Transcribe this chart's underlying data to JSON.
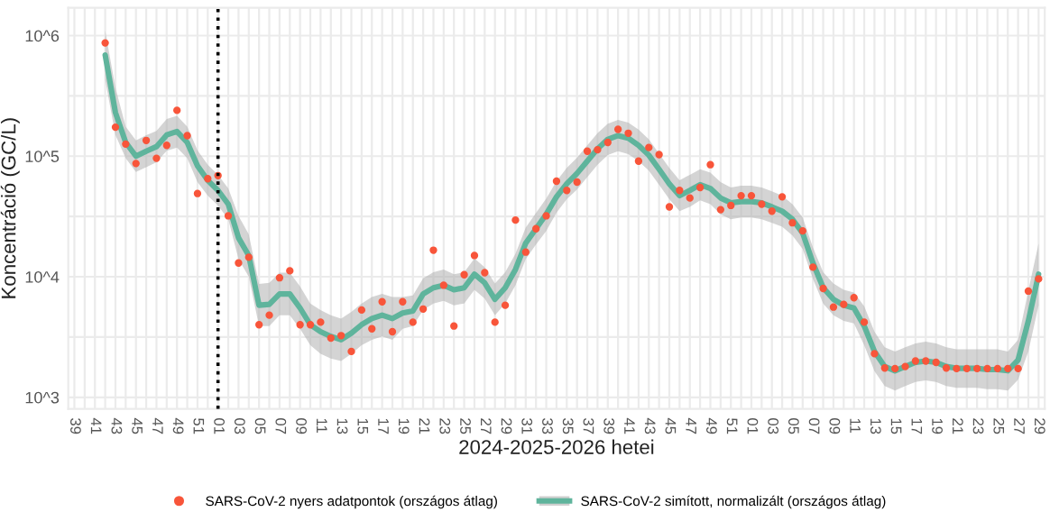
{
  "chart_data": {
    "type": "line",
    "xlabel": "2024-2025-2026 hetei",
    "ylabel": "Koncentráció (GC/L)",
    "log": "y",
    "grid": true,
    "legend": "bottom",
    "ylim": [
      800,
      1700000
    ],
    "yticks": [
      {
        "value": 1000,
        "label": "10^3"
      },
      {
        "value": 3162,
        "label": null
      },
      {
        "value": 10000,
        "label": "10^4"
      },
      {
        "value": 31623,
        "label": null
      },
      {
        "value": 100000,
        "label": "10^5"
      },
      {
        "value": 316228,
        "label": null
      },
      {
        "value": 1000000,
        "label": "10^6"
      }
    ],
    "categories": [
      "39",
      null,
      "41",
      null,
      "43",
      null,
      "45",
      null,
      "47",
      null,
      "49",
      null,
      "51",
      null,
      "01",
      null,
      "03",
      null,
      "05",
      null,
      "07",
      null,
      "09",
      null,
      "11",
      null,
      "13",
      null,
      "15",
      null,
      "17",
      null,
      "19",
      null,
      "21",
      null,
      "23",
      null,
      "25",
      null,
      "27",
      null,
      "29",
      null,
      "31",
      null,
      "33",
      null,
      "35",
      null,
      "37",
      null,
      "39",
      null,
      "41",
      null,
      "43",
      null,
      "45",
      null,
      "47",
      null,
      "49",
      null,
      "51",
      null,
      "01",
      null,
      "03",
      null,
      "05",
      null,
      "07",
      null,
      "09",
      null,
      "11",
      null,
      "13",
      null,
      "15",
      null,
      "17",
      null,
      "19",
      null,
      "21",
      null,
      "23",
      null,
      "25",
      null,
      "27",
      null,
      "29"
    ],
    "ref_lines": [
      {
        "axis": "x",
        "value": "01",
        "label": null,
        "color": "#000000",
        "line_style": "dotted"
      }
    ],
    "series": [
      {
        "name": "SARS-CoV-2 nyers adatpontok (országos átlag)",
        "type": "scatter",
        "marker": "circle",
        "color": "#f8553a",
        "values": [
          null,
          null,
          null,
          870000,
          174000,
          126000,
          87000,
          135000,
          96000,
          123000,
          240000,
          148000,
          49000,
          65000,
          69000,
          32000,
          13000,
          14500,
          4000,
          4800,
          9800,
          11200,
          4000,
          4000,
          4200,
          3100,
          3250,
          2400,
          5300,
          3700,
          6200,
          3500,
          6200,
          4200,
          5400,
          16600,
          8500,
          3900,
          10400,
          15000,
          10800,
          4200,
          5800,
          29500,
          16000,
          25000,
          32000,
          62000,
          52000,
          61000,
          110000,
          113000,
          130000,
          167000,
          155000,
          91000,
          118000,
          103000,
          38000,
          52000,
          45000,
          55000,
          85000,
          36000,
          39000,
          47000,
          47000,
          40000,
          35000,
          46000,
          28000,
          24000,
          12000,
          8000,
          5600,
          5900,
          6700,
          4200,
          2300,
          1750,
          1730,
          1800,
          2000,
          2000,
          1950,
          1750,
          1730,
          1730,
          1730,
          1730,
          1730,
          1730,
          1730,
          7600,
          9600
        ]
      },
      {
        "name": "SARS-CoV-2 simított, normalizált (országos átlag)",
        "color": "#5fb49c",
        "values": [
          null,
          null,
          null,
          690000,
          230000,
          130000,
          100000,
          110000,
          120000,
          150000,
          160000,
          130000,
          83000,
          63000,
          52000,
          40000,
          21000,
          15000,
          5800,
          5900,
          7200,
          7200,
          5500,
          4000,
          3500,
          3200,
          3000,
          3400,
          4000,
          4500,
          4800,
          4500,
          5000,
          5200,
          7200,
          8100,
          8500,
          7800,
          8100,
          10500,
          8900,
          6500,
          8100,
          11500,
          19000,
          25000,
          33000,
          46000,
          59000,
          72000,
          91000,
          115000,
          138000,
          148000,
          141000,
          123000,
          102000,
          78000,
          59000,
          47000,
          52000,
          58000,
          54000,
          45000,
          41000,
          42000,
          42000,
          41000,
          38000,
          35000,
          30000,
          23000,
          13000,
          8100,
          6500,
          5800,
          5500,
          3900,
          2400,
          1800,
          1660,
          1800,
          1950,
          2000,
          1950,
          1800,
          1740,
          1740,
          1740,
          1700,
          1700,
          1660,
          2040,
          4300,
          10500
        ],
        "lower": [
          null,
          null,
          null,
          430000,
          150000,
          96000,
          74000,
          81000,
          89000,
          111000,
          118000,
          96000,
          61000,
          47000,
          39000,
          30000,
          14000,
          10000,
          3900,
          3900,
          4800,
          4800,
          3700,
          2700,
          2300,
          2100,
          2000,
          2300,
          2700,
          3000,
          3200,
          3000,
          3700,
          3900,
          5300,
          6000,
          6300,
          5800,
          6000,
          7800,
          6600,
          4800,
          6000,
          8500,
          14000,
          18500,
          24000,
          34000,
          44000,
          53000,
          67000,
          85000,
          102000,
          110000,
          104000,
          91000,
          76000,
          58000,
          44000,
          35000,
          38000,
          43000,
          40000,
          33000,
          30000,
          31000,
          31000,
          30000,
          28000,
          26000,
          22000,
          17000,
          9600,
          6000,
          4800,
          4300,
          4100,
          2700,
          1650,
          1240,
          1140,
          1240,
          1340,
          1380,
          1340,
          1240,
          1200,
          1200,
          1200,
          1170,
          1170,
          1140,
          1400,
          2400,
          5800
        ],
        "upper": [
          null,
          null,
          null,
          1100000,
          370000,
          176000,
          135000,
          149000,
          162000,
          203000,
          216000,
          176000,
          112000,
          85000,
          70000,
          54000,
          32000,
          22500,
          8700,
          8900,
          10800,
          10800,
          8300,
          6000,
          5300,
          4800,
          4500,
          5100,
          6000,
          6800,
          7200,
          6800,
          6800,
          7000,
          9700,
          10900,
          11500,
          10500,
          10900,
          14200,
          12000,
          8800,
          10900,
          15500,
          25600,
          33800,
          44600,
          62000,
          80000,
          97000,
          123000,
          155000,
          186000,
          200000,
          190000,
          166000,
          138000,
          105000,
          80000,
          63000,
          70000,
          78000,
          73000,
          61000,
          55000,
          57000,
          57000,
          55000,
          51000,
          47000,
          40000,
          31000,
          17500,
          10900,
          8800,
          7800,
          7400,
          5700,
          3500,
          2600,
          2400,
          2600,
          2800,
          2900,
          2800,
          2600,
          2500,
          2500,
          2500,
          2500,
          2500,
          2400,
          3000,
          7700,
          18900
        ]
      }
    ]
  }
}
